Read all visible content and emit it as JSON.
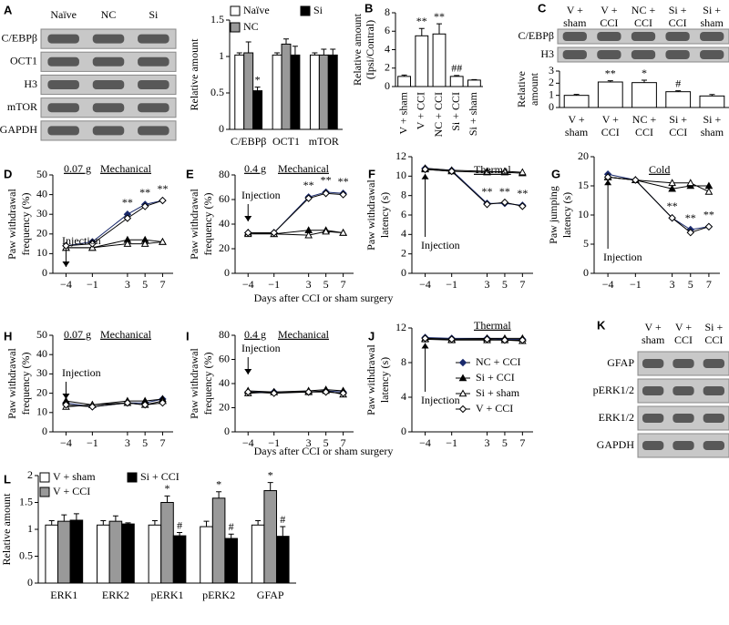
{
  "chart_data": [
    {
      "type": "blot",
      "label": "A",
      "lanes": [
        "Naïve",
        "NC",
        "Si"
      ],
      "rows": [
        "C/EBPβ",
        "OCT1",
        "H3",
        "mTOR",
        "GAPDH"
      ]
    },
    {
      "type": "bar",
      "ylabel": "Relative amount",
      "categories": [
        "C/EBPβ",
        "OCT1",
        "mTOR"
      ],
      "series": [
        {
          "name": "Naïve",
          "color": "#ffffff",
          "values": [
            1.02,
            1.02,
            1.02
          ],
          "errors": [
            0.03,
            0.03,
            0.03
          ],
          "markers": [
            null,
            null,
            null
          ]
        },
        {
          "name": "NC",
          "color": "#999999",
          "values": [
            1.05,
            1.17,
            1.02
          ],
          "errors": [
            0.15,
            0.07,
            0.08
          ],
          "markers": [
            null,
            null,
            null
          ]
        },
        {
          "name": "Si",
          "color": "#000000",
          "values": [
            0.53,
            1.02,
            1.02
          ],
          "errors": [
            0.05,
            0.12,
            0.08
          ],
          "markers": [
            "*",
            null,
            null
          ]
        }
      ],
      "ylim": [
        0,
        1.5
      ],
      "yticks": [
        0,
        0.5,
        1,
        1.5
      ]
    },
    {
      "type": "bar",
      "label": "B",
      "ylabel": [
        "Relative amount",
        "(Ipsi/Contral)"
      ],
      "rotate_categories": true,
      "categories": [
        "V + sham",
        "V + CCI",
        "NC + CCI",
        "Si + CCI",
        "Si + sham"
      ],
      "series": [
        {
          "color": "#ffffff",
          "values": [
            1.1,
            5.5,
            5.7,
            1.1,
            0.7
          ],
          "errors": [
            0.15,
            0.8,
            1.1,
            0.1,
            0.05
          ],
          "markers": [
            null,
            "**",
            "**",
            "##",
            null
          ]
        }
      ],
      "ylim": [
        0,
        8
      ],
      "yticks": [
        0,
        2,
        4,
        6,
        8
      ]
    },
    {
      "type": "blot",
      "label": "C",
      "lanes": [
        [
          "V +",
          "sham"
        ],
        [
          "V +",
          "CCI"
        ],
        [
          "NC +",
          "CCI"
        ],
        [
          "Si +",
          "CCI"
        ],
        [
          "Si +",
          "sham"
        ]
      ],
      "rows": [
        "C/EBPβ",
        "H3"
      ]
    },
    {
      "type": "bar",
      "ylabel": [
        "Relative",
        "amount"
      ],
      "categories": [
        [
          "V +",
          "sham"
        ],
        [
          "V +",
          "CCI"
        ],
        [
          "NC +",
          "CCI"
        ],
        [
          "Si +",
          "CCI"
        ],
        [
          "Si +",
          "sham"
        ]
      ],
      "series": [
        {
          "color": "#ffffff",
          "values": [
            1,
            2.1,
            2.05,
            1.3,
            0.95
          ],
          "errors": [
            0.08,
            0.1,
            0.2,
            0.08,
            0.12
          ],
          "markers": [
            null,
            "**",
            "*",
            "#",
            null
          ]
        }
      ],
      "ylim": [
        0,
        3
      ],
      "yticks": [
        0,
        1,
        2,
        3
      ]
    },
    {
      "type": "line",
      "label": "D",
      "weight": "0.07 g",
      "test": "Mechanical",
      "injection": "Injection",
      "ylabel": [
        "Paw withdrawal",
        "frequency (%)"
      ],
      "x": [
        -4,
        -1,
        3,
        5,
        7
      ],
      "xlim": [
        -5.5,
        8.2
      ],
      "xticks": [
        {
          "value": -4,
          "label": "−4"
        },
        {
          "value": -1,
          "label": "−1"
        },
        3,
        5,
        7
      ],
      "ylim": [
        0,
        50
      ],
      "yticks": [
        0,
        10,
        20,
        30,
        40,
        50
      ],
      "series": [
        {
          "color": "#1a2a6c",
          "marker": "diamond",
          "filled": true,
          "values": [
            14,
            16,
            30,
            35,
            37
          ],
          "markers": [
            null,
            null,
            "**",
            "**",
            "**"
          ]
        },
        {
          "color": "#000000",
          "marker": "triangle",
          "filled": true,
          "values": [
            13,
            13,
            17,
            17,
            16
          ]
        },
        {
          "color": "#000000",
          "marker": "triangle",
          "filled": false,
          "values": [
            13,
            13,
            15,
            15,
            16
          ]
        },
        {
          "color": "#000000",
          "marker": "diamond",
          "filled": false,
          "values": [
            14,
            15,
            28,
            34,
            37
          ]
        }
      ]
    },
    {
      "type": "line",
      "label": "E",
      "weight": "0.4 g",
      "test": "Mechanical",
      "injection": "Injection",
      "ylabel": [
        "Paw withdrawal",
        "frequency (%)"
      ],
      "xlabel": "Days after CCI or sham surgery",
      "x": [
        -4,
        -1,
        3,
        5,
        7
      ],
      "xlim": [
        -5.5,
        8.2
      ],
      "xticks": [
        {
          "value": -4,
          "label": "−4"
        },
        {
          "value": -1,
          "label": "−1"
        },
        3,
        5,
        7
      ],
      "ylim": [
        0,
        80
      ],
      "yticks": [
        0,
        20,
        40,
        60,
        80
      ],
      "series": [
        {
          "color": "#1a2a6c",
          "marker": "diamond",
          "filled": true,
          "values": [
            33,
            33,
            62,
            66,
            65
          ],
          "markers": [
            null,
            null,
            "**",
            "**",
            "**"
          ]
        },
        {
          "color": "#000000",
          "marker": "triangle",
          "filled": true,
          "values": [
            33,
            32,
            35,
            35,
            33
          ]
        },
        {
          "color": "#000000",
          "marker": "triangle",
          "filled": false,
          "values": [
            32,
            32,
            31,
            34,
            33
          ]
        },
        {
          "color": "#000000",
          "marker": "diamond",
          "filled": false,
          "values": [
            33,
            33,
            61,
            65,
            64
          ]
        }
      ]
    },
    {
      "type": "line",
      "label": "F",
      "test": "Thermal",
      "injection": "Injection",
      "ylabel": [
        "Paw withdrawal",
        "latency (s)"
      ],
      "x": [
        -4,
        -1,
        3,
        5,
        7
      ],
      "xlim": [
        -5.5,
        8.2
      ],
      "xticks": [
        {
          "value": -4,
          "label": "−4"
        },
        {
          "value": -1,
          "label": "−1"
        },
        3,
        5,
        7
      ],
      "ylim": [
        0,
        12
      ],
      "yticks": [
        0,
        2,
        4,
        6,
        8,
        10,
        12
      ],
      "series": [
        {
          "color": "#1a2a6c",
          "marker": "diamond",
          "filled": true,
          "values": [
            10.8,
            10.6,
            7.2,
            7.2,
            7.0
          ],
          "markers": [
            null,
            null,
            "**",
            "**",
            "**"
          ]
        },
        {
          "color": "#000000",
          "marker": "triangle",
          "filled": true,
          "values": [
            10.8,
            10.6,
            10.5,
            10.4,
            10.3
          ]
        },
        {
          "color": "#000000",
          "marker": "triangle",
          "filled": false,
          "values": [
            10.7,
            10.5,
            10.4,
            10.5,
            10.4
          ]
        },
        {
          "color": "#000000",
          "marker": "diamond",
          "filled": false,
          "values": [
            10.7,
            10.5,
            7.1,
            7.3,
            6.9
          ]
        }
      ]
    },
    {
      "type": "line",
      "label": "G",
      "test": "Cold",
      "injection": "Injection",
      "ylabel": [
        "Paw jumping",
        "latency (s)"
      ],
      "x": [
        -4,
        -1,
        3,
        5,
        7
      ],
      "xlim": [
        -5.5,
        8.2
      ],
      "xticks": [
        {
          "value": -4,
          "label": "−4"
        },
        {
          "value": -1,
          "label": "−1"
        },
        3,
        5,
        7
      ],
      "ylim": [
        0,
        20
      ],
      "yticks": [
        0,
        5,
        10,
        15,
        20
      ],
      "series": [
        {
          "color": "#1a2a6c",
          "marker": "diamond",
          "filled": true,
          "values": [
            17,
            16,
            9.5,
            7.5,
            8
          ],
          "markers": [
            null,
            null,
            "**",
            "**",
            "**"
          ]
        },
        {
          "color": "#000000",
          "marker": "triangle",
          "filled": true,
          "values": [
            16.5,
            16,
            14.5,
            15,
            15
          ]
        },
        {
          "color": "#000000",
          "marker": "triangle",
          "filled": false,
          "values": [
            16.5,
            16,
            15.5,
            15.5,
            14
          ]
        },
        {
          "color": "#000000",
          "marker": "diamond",
          "filled": false,
          "values": [
            16.5,
            16,
            9.5,
            7,
            8
          ]
        }
      ]
    },
    {
      "type": "line",
      "label": "H",
      "weight": "0.07 g",
      "test": "Mechanical",
      "injection": "Injection",
      "ylabel": [
        "Paw withdrawal",
        "frequency (%)"
      ],
      "x": [
        -4,
        -1,
        3,
        5,
        7
      ],
      "xlim": [
        -5.5,
        8.2
      ],
      "xticks": [
        {
          "value": -4,
          "label": "−4"
        },
        {
          "value": -1,
          "label": "−1"
        },
        3,
        5,
        7
      ],
      "ylim": [
        0,
        50
      ],
      "yticks": [
        0,
        10,
        20,
        30,
        40,
        50
      ],
      "series": [
        {
          "color": "#1a2a6c",
          "marker": "diamond",
          "filled": true,
          "values": [
            15,
            13,
            15,
            15,
            17
          ]
        },
        {
          "color": "#000000",
          "marker": "triangle",
          "filled": true,
          "values": [
            16,
            14,
            16,
            16,
            17
          ]
        },
        {
          "color": "#000000",
          "marker": "triangle",
          "filled": false,
          "values": [
            13,
            14,
            15,
            14,
            16
          ]
        },
        {
          "color": "#000000",
          "marker": "diamond",
          "filled": false,
          "values": [
            14,
            13,
            15,
            14,
            15
          ]
        }
      ]
    },
    {
      "type": "line",
      "label": "I",
      "weight": "0.4 g",
      "test": "Mechanical",
      "injection": "Injection",
      "ylabel": [
        "Paw withdrawal",
        "frequency (%)"
      ],
      "xlabel": "Days after CCI or sham surgery",
      "x": [
        -4,
        -1,
        3,
        5,
        7
      ],
      "xlim": [
        -5.5,
        8.2
      ],
      "xticks": [
        {
          "value": -4,
          "label": "−4"
        },
        {
          "value": -1,
          "label": "−1"
        },
        3,
        5,
        7
      ],
      "ylim": [
        0,
        80
      ],
      "yticks": [
        0,
        20,
        40,
        60,
        80
      ],
      "series": [
        {
          "color": "#1a2a6c",
          "marker": "diamond",
          "filled": true,
          "values": [
            33,
            33,
            33,
            34,
            33
          ]
        },
        {
          "color": "#000000",
          "marker": "triangle",
          "filled": true,
          "values": [
            34,
            33,
            34,
            35,
            34
          ]
        },
        {
          "color": "#000000",
          "marker": "triangle",
          "filled": false,
          "values": [
            32,
            33,
            33,
            34,
            31
          ]
        },
        {
          "color": "#000000",
          "marker": "diamond",
          "filled": false,
          "values": [
            33,
            32,
            33,
            33,
            32
          ]
        }
      ]
    },
    {
      "type": "line",
      "label": "J",
      "test": "Thermal",
      "injection": "Injection",
      "ylabel": [
        "Paw withdrawal",
        "latency (s)"
      ],
      "legend": "lower right",
      "x": [
        -4,
        -1,
        3,
        5,
        7
      ],
      "xlim": [
        -5.5,
        8.2
      ],
      "xticks": [
        {
          "value": -4,
          "label": "−4"
        },
        {
          "value": -1,
          "label": "−1"
        },
        3,
        5,
        7
      ],
      "ylim": [
        0,
        12
      ],
      "yticks": [
        0,
        4,
        8,
        12
      ],
      "series": [
        {
          "name": "NC + CCI",
          "color": "#1a2a6c",
          "marker": "diamond",
          "filled": true,
          "values": [
            10.9,
            10.8,
            10.8,
            10.7,
            10.7
          ]
        },
        {
          "name": "Si + CCI",
          "color": "#000000",
          "marker": "triangle",
          "filled": true,
          "values": [
            10.8,
            10.7,
            10.8,
            10.8,
            10.8
          ]
        },
        {
          "name": "Si + sham",
          "color": "#000000",
          "marker": "triangle",
          "filled": false,
          "values": [
            10.7,
            10.6,
            10.6,
            10.6,
            10.5
          ]
        },
        {
          "name": "V + CCI",
          "color": "#000000",
          "marker": "diamond",
          "filled": false,
          "values": [
            10.8,
            10.7,
            10.7,
            10.6,
            10.6
          ]
        }
      ]
    },
    {
      "type": "blot",
      "label": "K",
      "lanes": [
        [
          "V +",
          "sham"
        ],
        [
          "V +",
          "CCI"
        ],
        [
          "Si +",
          "CCI"
        ]
      ],
      "rows": [
        "GFAP",
        "pERK1/2",
        "ERK1/2",
        "GAPDH"
      ]
    },
    {
      "type": "bar",
      "label": "L",
      "ylabel": "Relative amount",
      "categories": [
        "ERK1",
        "ERK2",
        "pERK1",
        "pERK2",
        "GFAP"
      ],
      "series": [
        {
          "name": "V + sham",
          "color": "#ffffff",
          "values": [
            1.08,
            1.08,
            1.08,
            1.05,
            1.08
          ],
          "errors": [
            0.08,
            0.08,
            0.08,
            0.1,
            0.08
          ],
          "markers": [
            null,
            null,
            null,
            null,
            null
          ]
        },
        {
          "name": "V + CCI",
          "color": "#999999",
          "values": [
            1.15,
            1.15,
            1.5,
            1.58,
            1.72
          ],
          "errors": [
            0.12,
            0.1,
            0.12,
            0.12,
            0.15
          ],
          "markers": [
            null,
            null,
            "*",
            "*",
            "*"
          ]
        },
        {
          "name": "Si + CCI",
          "color": "#000000",
          "values": [
            1.17,
            1.1,
            0.88,
            0.83,
            0.87
          ],
          "errors": [
            0.12,
            0.02,
            0.06,
            0.08,
            0.18
          ],
          "markers": [
            null,
            null,
            "#",
            "#",
            "#"
          ]
        }
      ],
      "ylim": [
        0,
        2
      ],
      "yticks": [
        0,
        0.5,
        1,
        1.5,
        2
      ]
    }
  ]
}
